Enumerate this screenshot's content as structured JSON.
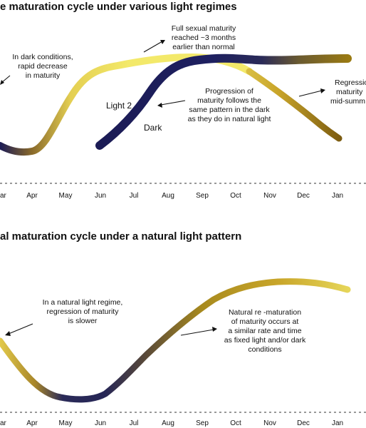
{
  "colors": {
    "light": "#f3e96a",
    "mid": "#c49a1a",
    "dark": "#1b1b55"
  },
  "top_panel": {
    "title": "e maturation cycle under various light regimes",
    "notes": {
      "dark_decrease": [
        "In dark conditions,",
        "rapid decrease",
        "in maturity"
      ],
      "full_maturity": [
        "Full sexual maturity",
        "reached ~3 months",
        "earlier than normal"
      ],
      "same_pattern": [
        "Progression of",
        "maturity follows the",
        "same pattern in the dark",
        "as they do in natural light"
      ],
      "regression": [
        "Regressio",
        "maturity",
        "mid-summ"
      ]
    },
    "labels": {
      "light2": "Light 2",
      "dark": "Dark"
    },
    "months": [
      "ar",
      "Apr",
      "May",
      "Jun",
      "Jul",
      "Aug",
      "Sep",
      "Oct",
      "Nov",
      "Dec",
      "Jan"
    ]
  },
  "bottom_panel": {
    "title": "al maturation cycle under a natural light pattern",
    "notes": {
      "natural_regression": [
        "In a natural light regime,",
        "regression of maturity",
        "is slower"
      ],
      "rematuration": [
        "Natural re -maturation",
        "of maturity occurs at",
        "a similar rate and time",
        "as fixed light and/or dark",
        "conditions"
      ]
    },
    "months": [
      "ar",
      "Apr",
      "May",
      "Jun",
      "Jul",
      "Aug",
      "Sep",
      "Oct",
      "Nov",
      "Dec",
      "Jan"
    ]
  }
}
